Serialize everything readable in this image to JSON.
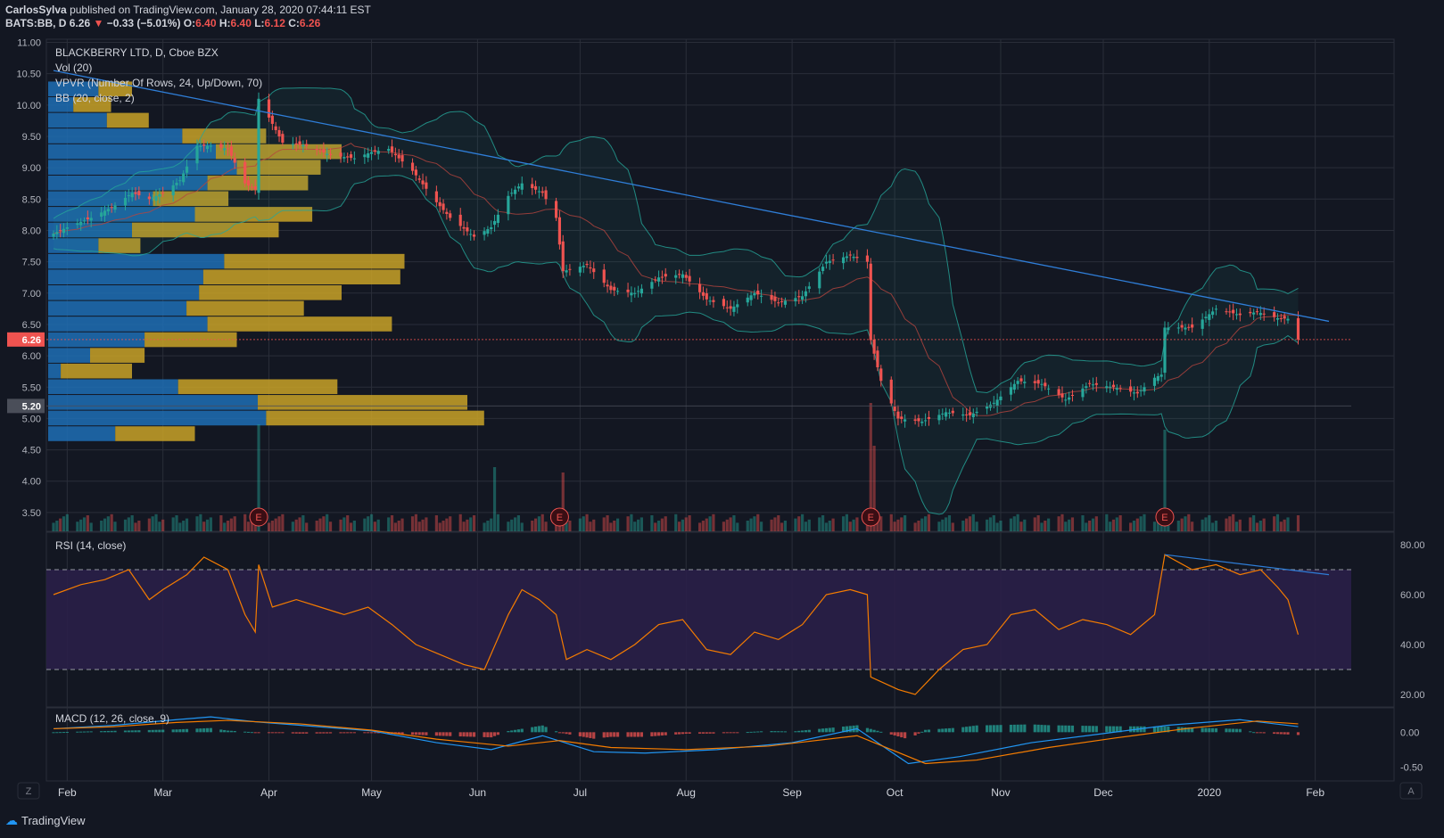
{
  "header": {
    "author": "CarlosSylva",
    "published": "published on TradingView.com, January 28, 2020 07:44:11 EST",
    "symbol": "BATS:BB, D",
    "last": "6.26",
    "change": "−0.33 (−5.01%)",
    "o_label": "O:",
    "o": "6.40",
    "h_label": "H:",
    "h": "6.40",
    "l_label": "L:",
    "l": "6.12",
    "c_label": "C:",
    "c": "6.26"
  },
  "legend": {
    "title": "BLACKBERRY LTD, D, Cboe BZX",
    "vol": "Vol (20)",
    "vpvr": "VPVR (Number Of Rows, 24, Up/Down, 70)",
    "bb": "BB (20, close, 2)",
    "rsi": "RSI (14, close)",
    "macd": "MACD (12, 26, close, 9)"
  },
  "footer": {
    "brand": "TradingView",
    "left_btn": "Z",
    "right_btn": "A"
  },
  "colors": {
    "background": "#131722",
    "grid": "#2a2e39",
    "up": "#26a69a",
    "down": "#ef5350",
    "trendline": "#2f7ed8",
    "rsi_line": "#f57c00",
    "rsi_band": "#2a1f48",
    "vpvr_up": "#1f6fb5",
    "vpvr_down": "#c9a227",
    "bb_fill": "#26a69a",
    "macd_signal": "#f57c00",
    "macd_line": "#2196f3"
  },
  "chart_data": [
    {
      "type": "candlestick",
      "title": "BLACKBERRY LTD, D, Cboe BZX",
      "x_ticks": [
        "Feb",
        "Mar",
        "Apr",
        "May",
        "Jun",
        "Jul",
        "Aug",
        "Sep",
        "Oct",
        "Nov",
        "Dec",
        "2020",
        "Feb"
      ],
      "y_ticks": [
        "11.00",
        "10.50",
        "10.00",
        "9.50",
        "9.00",
        "8.50",
        "8.00",
        "7.50",
        "7.00",
        "6.50",
        "6.00",
        "5.50",
        "5.00",
        "4.50",
        "4.00",
        "3.50"
      ],
      "ylim": [
        3.2,
        11.05
      ],
      "price_tags": [
        {
          "label": "6.26",
          "value": 6.26,
          "color": "#ef5350"
        },
        {
          "label": "5.20",
          "value": 5.2,
          "color": "#4a4e59"
        }
      ],
      "earnings_markers": [
        "E",
        "E",
        "E",
        "E"
      ],
      "earnings_dates": [
        "2019-03-29",
        "2019-06-25",
        "2019-09-24",
        "2019-12-19"
      ],
      "close_series": [
        [
          "2019-01-28",
          7.95
        ],
        [
          "2019-02-01",
          8.05
        ],
        [
          "2019-02-08",
          8.2
        ],
        [
          "2019-02-15",
          8.4
        ],
        [
          "2019-02-20",
          8.6
        ],
        [
          "2019-02-25",
          8.5
        ],
        [
          "2019-03-01",
          8.6
        ],
        [
          "2019-03-06",
          8.8
        ],
        [
          "2019-03-11",
          9.35
        ],
        [
          "2019-03-15",
          9.35
        ],
        [
          "2019-03-20",
          9.3
        ],
        [
          "2019-03-25",
          8.75
        ],
        [
          "2019-03-28",
          8.65
        ],
        [
          "2019-03-29",
          10.1
        ],
        [
          "2019-04-01",
          9.8
        ],
        [
          "2019-04-05",
          9.4
        ],
        [
          "2019-04-12",
          9.35
        ],
        [
          "2019-04-19",
          9.2
        ],
        [
          "2019-04-26",
          9.15
        ],
        [
          "2019-05-01",
          9.25
        ],
        [
          "2019-05-06",
          9.3
        ],
        [
          "2019-05-13",
          8.95
        ],
        [
          "2019-05-20",
          8.45
        ],
        [
          "2019-05-24",
          8.2
        ],
        [
          "2019-05-31",
          7.9
        ],
        [
          "2019-06-05",
          8.05
        ],
        [
          "2019-06-10",
          8.55
        ],
        [
          "2019-06-14",
          8.75
        ],
        [
          "2019-06-20",
          8.6
        ],
        [
          "2019-06-24",
          8.2
        ],
        [
          "2019-06-26",
          7.35
        ],
        [
          "2019-07-03",
          7.45
        ],
        [
          "2019-07-10",
          7.05
        ],
        [
          "2019-07-17",
          7.0
        ],
        [
          "2019-07-24",
          7.25
        ],
        [
          "2019-07-31",
          7.3
        ],
        [
          "2019-08-07",
          6.9
        ],
        [
          "2019-08-14",
          6.75
        ],
        [
          "2019-08-21",
          7.0
        ],
        [
          "2019-08-28",
          6.85
        ],
        [
          "2019-09-04",
          6.95
        ],
        [
          "2019-09-11",
          7.5
        ],
        [
          "2019-09-18",
          7.6
        ],
        [
          "2019-09-23",
          7.5
        ],
        [
          "2019-09-24",
          6.25
        ],
        [
          "2019-09-27",
          5.6
        ],
        [
          "2019-10-02",
          5.0
        ],
        [
          "2019-10-09",
          4.95
        ],
        [
          "2019-10-16",
          5.1
        ],
        [
          "2019-10-23",
          5.05
        ],
        [
          "2019-10-30",
          5.25
        ],
        [
          "2019-11-06",
          5.6
        ],
        [
          "2019-11-13",
          5.55
        ],
        [
          "2019-11-20",
          5.3
        ],
        [
          "2019-11-27",
          5.55
        ],
        [
          "2019-12-04",
          5.5
        ],
        [
          "2019-12-11",
          5.4
        ],
        [
          "2019-12-16",
          5.65
        ],
        [
          "2019-12-18",
          5.7
        ],
        [
          "2019-12-19",
          6.45
        ],
        [
          "2019-12-27",
          6.45
        ],
        [
          "2020-01-03",
          6.75
        ],
        [
          "2020-01-10",
          6.65
        ],
        [
          "2020-01-15",
          6.7
        ],
        [
          "2020-01-21",
          6.6
        ],
        [
          "2020-01-24",
          6.59
        ],
        [
          "2020-01-27",
          6.26
        ]
      ],
      "trendline": [
        [
          "2019-01-28",
          10.55
        ],
        [
          "2020-02-05",
          6.55
        ]
      ],
      "vpvr_rows": [
        {
          "price": 10.25,
          "up": 0.12,
          "down": 0.08
        },
        {
          "price": 10.0,
          "up": 0.06,
          "down": 0.09
        },
        {
          "price": 9.75,
          "up": 0.14,
          "down": 0.1
        },
        {
          "price": 9.5,
          "up": 0.32,
          "down": 0.2
        },
        {
          "price": 9.25,
          "up": 0.4,
          "down": 0.3
        },
        {
          "price": 9.0,
          "up": 0.45,
          "down": 0.2
        },
        {
          "price": 8.75,
          "up": 0.38,
          "down": 0.24
        },
        {
          "price": 8.5,
          "up": 0.25,
          "down": 0.18
        },
        {
          "price": 8.25,
          "up": 0.35,
          "down": 0.28
        },
        {
          "price": 8.0,
          "up": 0.2,
          "down": 0.35
        },
        {
          "price": 7.75,
          "up": 0.12,
          "down": 0.1
        },
        {
          "price": 7.5,
          "up": 0.42,
          "down": 0.43
        },
        {
          "price": 7.25,
          "up": 0.37,
          "down": 0.47
        },
        {
          "price": 7.0,
          "up": 0.36,
          "down": 0.34
        },
        {
          "price": 6.75,
          "up": 0.33,
          "down": 0.28
        },
        {
          "price": 6.5,
          "up": 0.38,
          "down": 0.44
        },
        {
          "price": 6.25,
          "up": 0.23,
          "down": 0.22
        },
        {
          "price": 6.0,
          "up": 0.1,
          "down": 0.13
        },
        {
          "price": 5.75,
          "up": 0.03,
          "down": 0.17
        },
        {
          "price": 5.5,
          "up": 0.31,
          "down": 0.38
        },
        {
          "price": 5.25,
          "up": 0.5,
          "down": 0.5
        },
        {
          "price": 5.0,
          "up": 0.52,
          "down": 0.52
        },
        {
          "price": 4.75,
          "up": 0.16,
          "down": 0.19
        }
      ],
      "volume_spikes": [
        [
          "2019-03-29",
          1.0
        ],
        [
          "2019-06-06",
          0.6
        ],
        [
          "2019-06-26",
          0.55
        ],
        [
          "2019-09-24",
          1.2
        ],
        [
          "2019-09-25",
          0.8
        ],
        [
          "2019-12-19",
          0.95
        ]
      ]
    },
    {
      "type": "line",
      "title": "RSI (14, close)",
      "y_ticks": [
        "80.00",
        "60.00",
        "40.00",
        "20.00"
      ],
      "ylim": [
        15,
        85
      ],
      "bands": [
        30,
        70
      ],
      "series": [
        {
          "values": [
            [
              "2019-01-28",
              60
            ],
            [
              "2019-02-05",
              64
            ],
            [
              "2019-02-12",
              66
            ],
            [
              "2019-02-19",
              70
            ],
            [
              "2019-02-25",
              58
            ],
            [
              "2019-03-01",
              62
            ],
            [
              "2019-03-08",
              68
            ],
            [
              "2019-03-13",
              75
            ],
            [
              "2019-03-20",
              70
            ],
            [
              "2019-03-25",
              52
            ],
            [
              "2019-03-28",
              45
            ],
            [
              "2019-03-29",
              72
            ],
            [
              "2019-04-02",
              55
            ],
            [
              "2019-04-09",
              58
            ],
            [
              "2019-04-16",
              55
            ],
            [
              "2019-04-23",
              52
            ],
            [
              "2019-04-30",
              55
            ],
            [
              "2019-05-07",
              48
            ],
            [
              "2019-05-14",
              40
            ],
            [
              "2019-05-21",
              36
            ],
            [
              "2019-05-28",
              32
            ],
            [
              "2019-06-03",
              30
            ],
            [
              "2019-06-10",
              52
            ],
            [
              "2019-06-14",
              62
            ],
            [
              "2019-06-19",
              58
            ],
            [
              "2019-06-24",
              52
            ],
            [
              "2019-06-27",
              34
            ],
            [
              "2019-07-03",
              38
            ],
            [
              "2019-07-10",
              34
            ],
            [
              "2019-07-17",
              40
            ],
            [
              "2019-07-24",
              48
            ],
            [
              "2019-07-31",
              50
            ],
            [
              "2019-08-07",
              38
            ],
            [
              "2019-08-14",
              36
            ],
            [
              "2019-08-21",
              45
            ],
            [
              "2019-08-28",
              42
            ],
            [
              "2019-09-04",
              48
            ],
            [
              "2019-09-11",
              60
            ],
            [
              "2019-09-18",
              62
            ],
            [
              "2019-09-23",
              60
            ],
            [
              "2019-09-24",
              27
            ],
            [
              "2019-10-02",
              22
            ],
            [
              "2019-10-07",
              20
            ],
            [
              "2019-10-14",
              30
            ],
            [
              "2019-10-21",
              38
            ],
            [
              "2019-10-28",
              40
            ],
            [
              "2019-11-04",
              52
            ],
            [
              "2019-11-11",
              54
            ],
            [
              "2019-11-18",
              46
            ],
            [
              "2019-11-25",
              50
            ],
            [
              "2019-12-02",
              48
            ],
            [
              "2019-12-09",
              44
            ],
            [
              "2019-12-16",
              52
            ],
            [
              "2019-12-19",
              76
            ],
            [
              "2019-12-27",
              70
            ],
            [
              "2020-01-03",
              72
            ],
            [
              "2020-01-10",
              68
            ],
            [
              "2020-01-16",
              70
            ],
            [
              "2020-01-21",
              63
            ],
            [
              "2020-01-24",
              58
            ],
            [
              "2020-01-27",
              44
            ]
          ]
        }
      ],
      "trendline": [
        [
          "2019-12-19",
          76
        ],
        [
          "2020-02-05",
          68
        ]
      ]
    },
    {
      "type": "line",
      "title": "MACD (12, 26, close, 9)",
      "y_ticks": [
        "0.00",
        "-0.50"
      ],
      "ylim": [
        -0.7,
        0.35
      ],
      "series": [
        {
          "values": [
            [
              "2019-01-28",
              0.05
            ],
            [
              "2019-02-15",
              0.1
            ],
            [
              "2019-03-05",
              0.18
            ],
            [
              "2019-03-15",
              0.22
            ],
            [
              "2019-03-28",
              0.15
            ],
            [
              "2019-04-10",
              0.1
            ],
            [
              "2019-05-01",
              0.02
            ],
            [
              "2019-05-20",
              -0.15
            ],
            [
              "2019-06-05",
              -0.25
            ],
            [
              "2019-06-20",
              -0.05
            ],
            [
              "2019-07-05",
              -0.28
            ],
            [
              "2019-07-20",
              -0.3
            ],
            [
              "2019-08-10",
              -0.25
            ],
            [
              "2019-09-01",
              -0.15
            ],
            [
              "2019-09-20",
              0.05
            ],
            [
              "2019-10-05",
              -0.45
            ],
            [
              "2019-10-20",
              -0.35
            ],
            [
              "2019-11-10",
              -0.15
            ],
            [
              "2019-12-01",
              -0.02
            ],
            [
              "2019-12-20",
              0.1
            ],
            [
              "2020-01-10",
              0.18
            ],
            [
              "2020-01-27",
              0.08
            ]
          ]
        },
        {
          "values": [
            [
              "2019-01-28",
              0.05
            ],
            [
              "2019-02-15",
              0.08
            ],
            [
              "2019-03-05",
              0.14
            ],
            [
              "2019-03-20",
              0.17
            ],
            [
              "2019-04-10",
              0.12
            ],
            [
              "2019-05-01",
              0.03
            ],
            [
              "2019-05-20",
              -0.1
            ],
            [
              "2019-06-10",
              -0.2
            ],
            [
              "2019-06-25",
              -0.12
            ],
            [
              "2019-07-10",
              -0.22
            ],
            [
              "2019-08-01",
              -0.25
            ],
            [
              "2019-08-25",
              -0.2
            ],
            [
              "2019-09-20",
              -0.05
            ],
            [
              "2019-10-10",
              -0.45
            ],
            [
              "2019-10-25",
              -0.4
            ],
            [
              "2019-11-15",
              -0.22
            ],
            [
              "2019-12-05",
              -0.08
            ],
            [
              "2019-12-25",
              0.05
            ],
            [
              "2020-01-15",
              0.16
            ],
            [
              "2020-01-27",
              0.12
            ]
          ]
        }
      ]
    }
  ]
}
